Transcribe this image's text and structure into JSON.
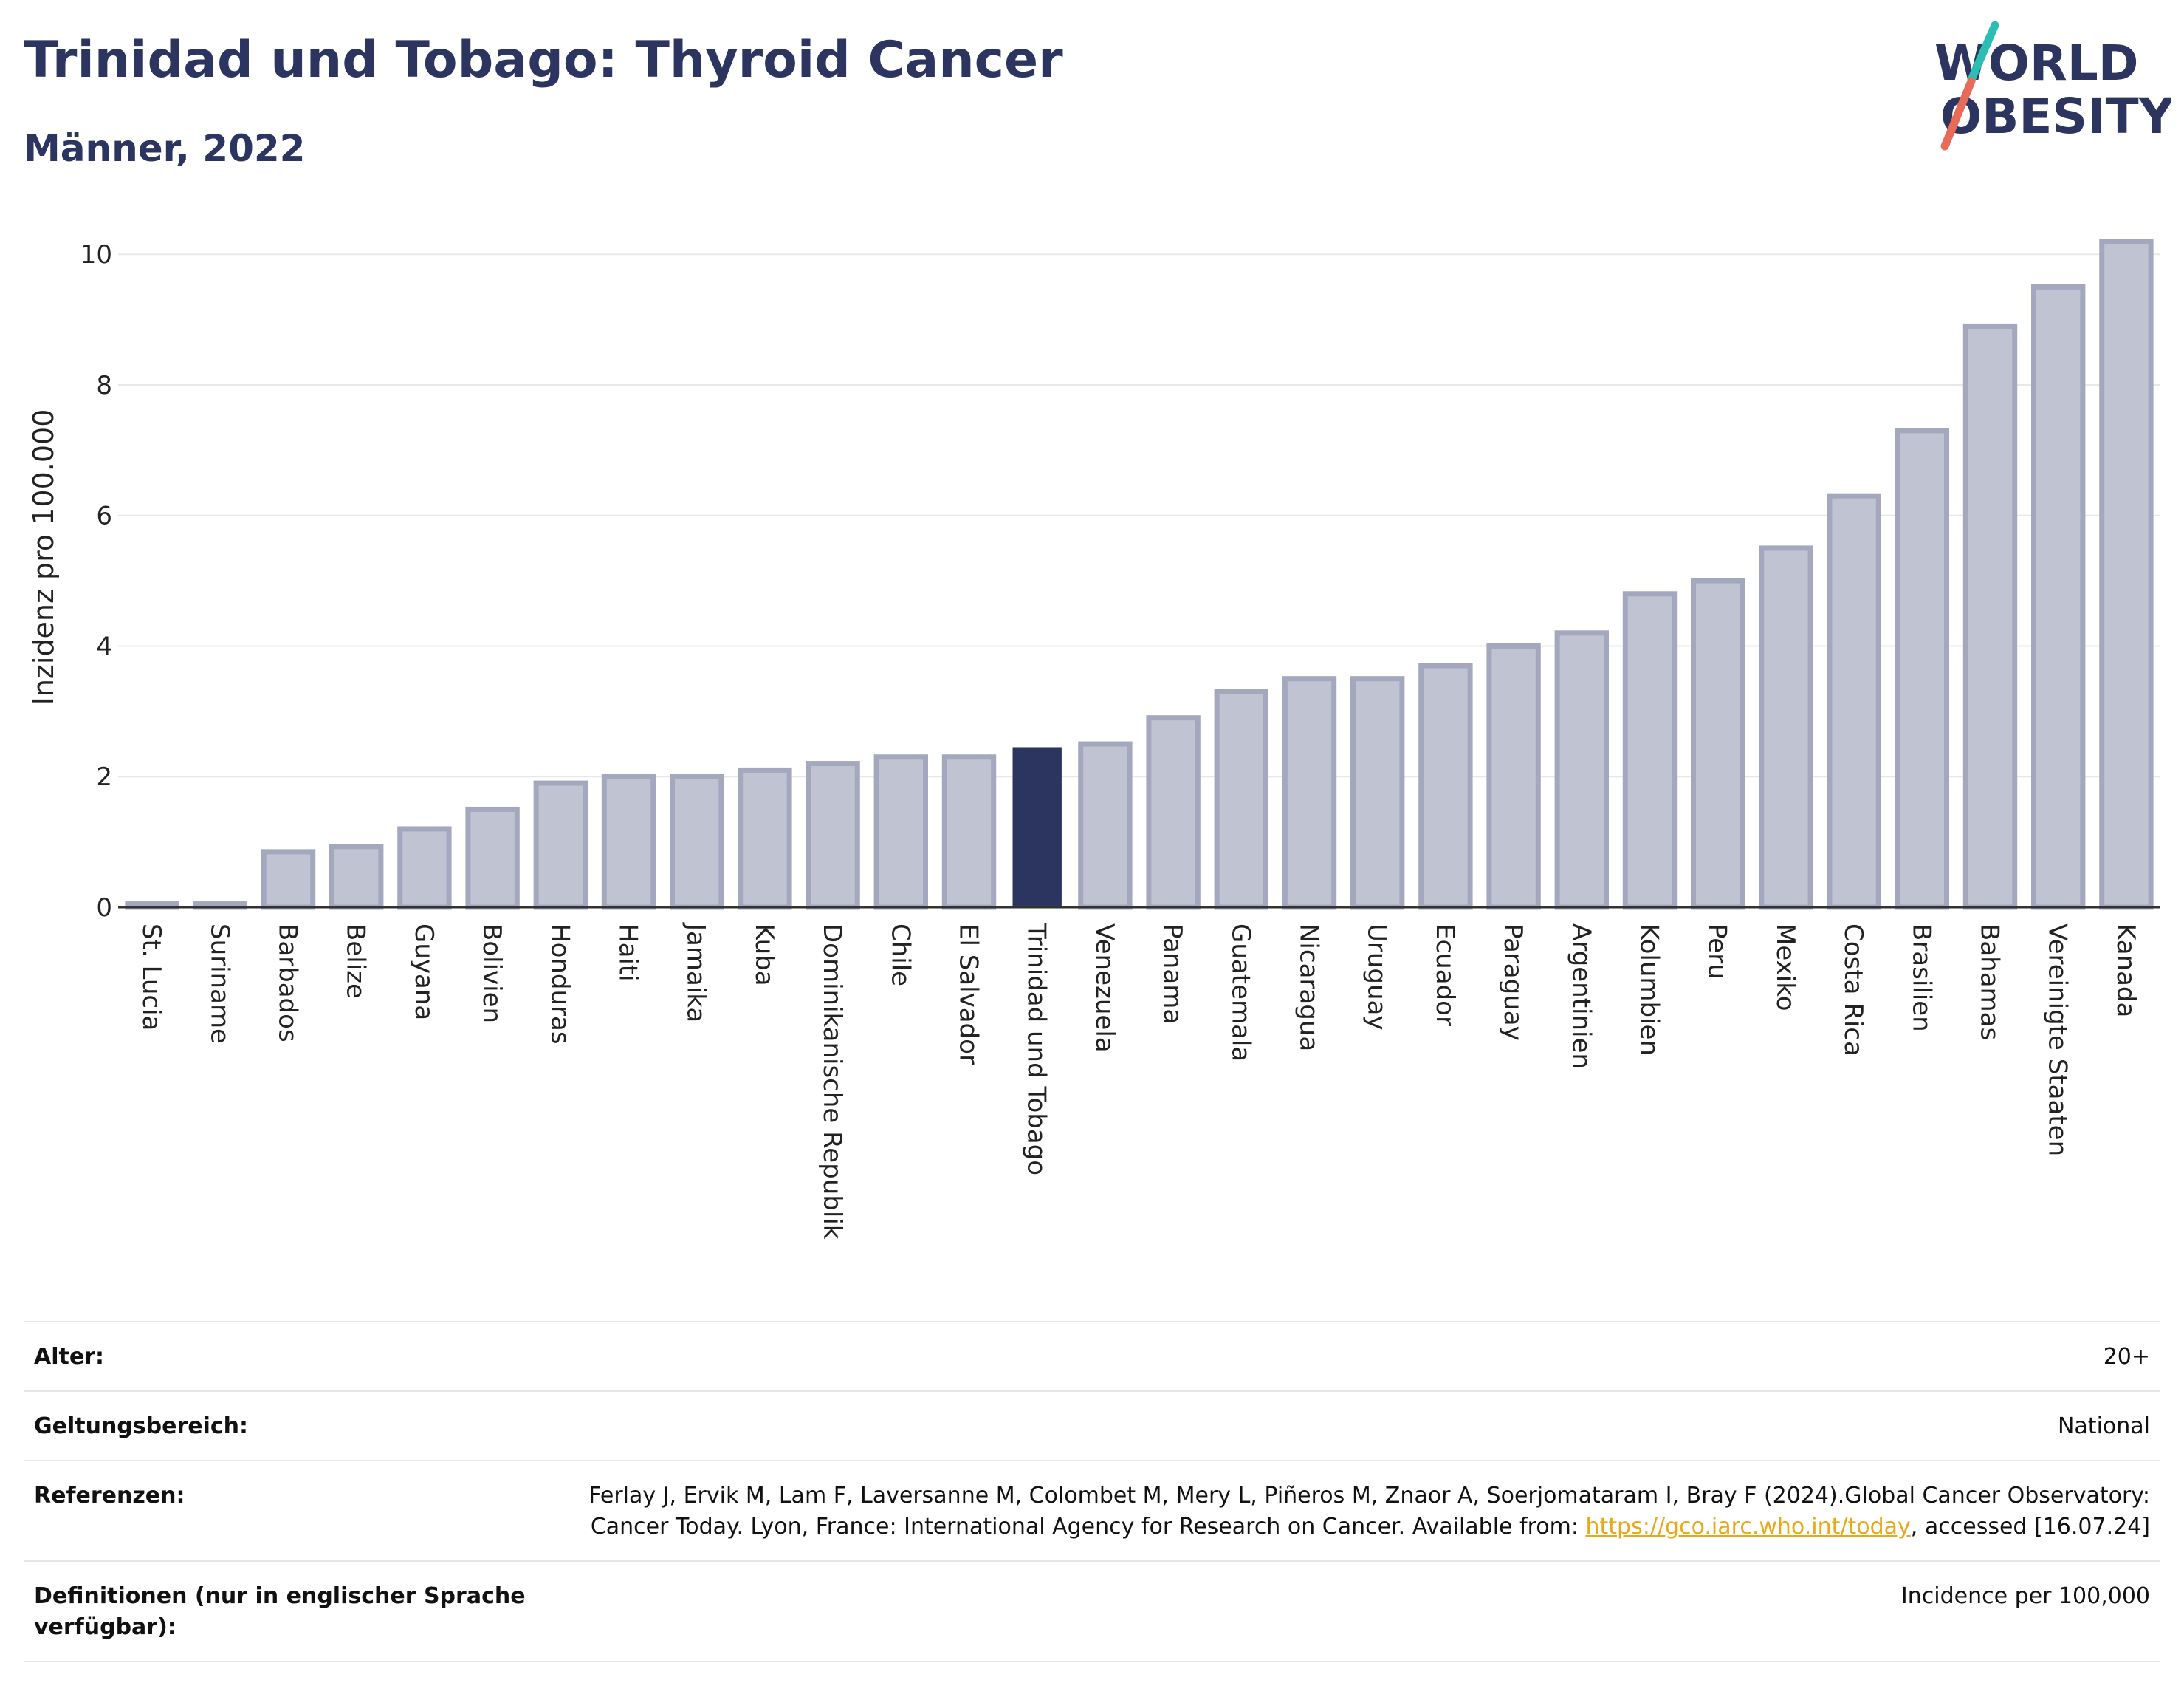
{
  "header": {
    "title": "Trinidad und Tobago: Thyroid Cancer",
    "subtitle": "Männer, 2022"
  },
  "logo": {
    "line1": "WORLD",
    "line2": "OBESITY",
    "colors": {
      "text": "#2c3560",
      "slash_top": "#2bbfb3",
      "slash_bottom": "#e86b5a"
    }
  },
  "chart_data": {
    "type": "bar",
    "ylabel": "Inzidenz pro 100.000",
    "ylim": [
      0,
      10.5
    ],
    "yticks": [
      0,
      2,
      4,
      6,
      8,
      10
    ],
    "grid": true,
    "highlight": "Trinidad und Tobago",
    "colors": {
      "bar": "#c0c3d1",
      "bar_stroke": "#a3a8bf",
      "highlight": "#2c3560"
    },
    "categories": [
      "St. Lucia",
      "Suriname",
      "Barbados",
      "Belize",
      "Guyana",
      "Bolivien",
      "Honduras",
      "Haiti",
      "Jamaika",
      "Kuba",
      "Dominikanische Republik",
      "Chile",
      "El Salvador",
      "Trinidad und Tobago",
      "Venezuela",
      "Panama",
      "Guatemala",
      "Nicaragua",
      "Uruguay",
      "Ecuador",
      "Paraguay",
      "Argentinien",
      "Kolumbien",
      "Peru",
      "Mexiko",
      "Costa Rica",
      "Brasilien",
      "Bahamas",
      "Vereinigte Staaten",
      "Kanada"
    ],
    "values": [
      0.05,
      0.05,
      0.85,
      0.93,
      1.2,
      1.5,
      1.9,
      2.0,
      2.0,
      2.1,
      2.2,
      2.3,
      2.3,
      2.45,
      2.5,
      2.9,
      3.3,
      3.5,
      3.5,
      3.7,
      4.0,
      4.2,
      4.8,
      5.0,
      5.5,
      6.3,
      7.3,
      8.9,
      9.5,
      10.2
    ]
  },
  "footer": {
    "rows": [
      {
        "label": "Alter:",
        "value": "20+"
      },
      {
        "label": "Geltungsbereich:",
        "value": "National"
      },
      {
        "label": "Referenzen:",
        "value_pre": "Ferlay J, Ervik M, Lam F, Laversanne M, Colombet M, Mery L, Piñeros M, Znaor A, Soerjomataram I, Bray F (2024).Global Cancer Observatory: Cancer Today. Lyon, France: International Agency for Research on Cancer. Available from: ",
        "link": "https://gco.iarc.who.int/today",
        "value_post": ", accessed [16.07.24]"
      },
      {
        "label": "Definitionen (nur in englischer Sprache verfügbar):",
        "value": "Incidence per 100,000"
      }
    ]
  }
}
